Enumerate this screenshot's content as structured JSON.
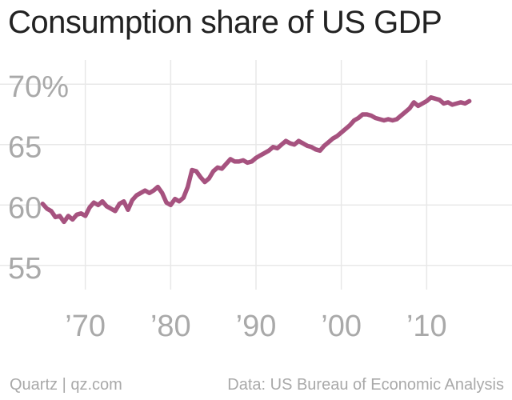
{
  "chart_data": {
    "type": "line",
    "title": "Consumption share of US GDP",
    "subtitle": "",
    "xlabel": "",
    "ylabel": "",
    "xlim": [
      1960,
      2020
    ],
    "ylim": [
      53,
      72
    ],
    "x_ticks": [
      {
        "value": 1970,
        "label": "’70"
      },
      {
        "value": 1980,
        "label": "’80"
      },
      {
        "value": 1990,
        "label": "’90"
      },
      {
        "value": 2000,
        "label": "’00"
      },
      {
        "value": 2010,
        "label": "’10"
      }
    ],
    "y_ticks": [
      {
        "value": 70,
        "label": "70%"
      },
      {
        "value": 65,
        "label": "65"
      },
      {
        "value": 60,
        "label": "60"
      },
      {
        "value": 55,
        "label": "55"
      }
    ],
    "grid": true,
    "series": [
      {
        "color": "#a6527f",
        "points": [
          [
            1965.0,
            60.1
          ],
          [
            1965.5,
            59.7
          ],
          [
            1966.0,
            59.5
          ],
          [
            1966.5,
            59.0
          ],
          [
            1967.0,
            59.1
          ],
          [
            1967.5,
            58.6
          ],
          [
            1968.0,
            59.1
          ],
          [
            1968.5,
            58.8
          ],
          [
            1969.0,
            59.2
          ],
          [
            1969.5,
            59.3
          ],
          [
            1970.0,
            59.1
          ],
          [
            1970.5,
            59.8
          ],
          [
            1971.0,
            60.2
          ],
          [
            1971.5,
            60.0
          ],
          [
            1972.0,
            60.3
          ],
          [
            1972.5,
            59.9
          ],
          [
            1973.0,
            59.7
          ],
          [
            1973.5,
            59.5
          ],
          [
            1974.0,
            60.1
          ],
          [
            1974.5,
            60.3
          ],
          [
            1975.0,
            59.6
          ],
          [
            1975.5,
            60.4
          ],
          [
            1976.0,
            60.8
          ],
          [
            1976.5,
            61.0
          ],
          [
            1977.0,
            61.2
          ],
          [
            1977.5,
            61.0
          ],
          [
            1978.0,
            61.2
          ],
          [
            1978.5,
            61.5
          ],
          [
            1979.0,
            61.0
          ],
          [
            1979.5,
            60.2
          ],
          [
            1980.0,
            60.0
          ],
          [
            1980.5,
            60.5
          ],
          [
            1981.0,
            60.3
          ],
          [
            1981.5,
            60.6
          ],
          [
            1982.0,
            61.5
          ],
          [
            1982.5,
            62.9
          ],
          [
            1983.0,
            62.8
          ],
          [
            1983.5,
            62.3
          ],
          [
            1984.0,
            61.9
          ],
          [
            1984.5,
            62.2
          ],
          [
            1985.0,
            62.8
          ],
          [
            1985.5,
            63.1
          ],
          [
            1986.0,
            63.0
          ],
          [
            1986.5,
            63.4
          ],
          [
            1987.0,
            63.8
          ],
          [
            1987.5,
            63.6
          ],
          [
            1988.0,
            63.6
          ],
          [
            1988.5,
            63.7
          ],
          [
            1989.0,
            63.5
          ],
          [
            1989.5,
            63.6
          ],
          [
            1990.0,
            63.9
          ],
          [
            1990.5,
            64.1
          ],
          [
            1991.0,
            64.3
          ],
          [
            1991.5,
            64.5
          ],
          [
            1992.0,
            64.8
          ],
          [
            1992.5,
            64.7
          ],
          [
            1993.0,
            65.0
          ],
          [
            1993.5,
            65.3
          ],
          [
            1994.0,
            65.1
          ],
          [
            1994.5,
            65.0
          ],
          [
            1995.0,
            65.3
          ],
          [
            1995.5,
            65.1
          ],
          [
            1996.0,
            64.9
          ],
          [
            1996.5,
            64.8
          ],
          [
            1997.0,
            64.6
          ],
          [
            1997.5,
            64.5
          ],
          [
            1998.0,
            64.9
          ],
          [
            1998.5,
            65.2
          ],
          [
            1999.0,
            65.5
          ],
          [
            1999.5,
            65.7
          ],
          [
            2000.0,
            66.0
          ],
          [
            2000.5,
            66.3
          ],
          [
            2001.0,
            66.6
          ],
          [
            2001.5,
            67.0
          ],
          [
            2002.0,
            67.2
          ],
          [
            2002.5,
            67.5
          ],
          [
            2003.0,
            67.5
          ],
          [
            2003.5,
            67.4
          ],
          [
            2004.0,
            67.2
          ],
          [
            2004.5,
            67.1
          ],
          [
            2005.0,
            67.0
          ],
          [
            2005.5,
            67.1
          ],
          [
            2006.0,
            67.0
          ],
          [
            2006.5,
            67.1
          ],
          [
            2007.0,
            67.4
          ],
          [
            2007.5,
            67.7
          ],
          [
            2008.0,
            68.0
          ],
          [
            2008.5,
            68.5
          ],
          [
            2009.0,
            68.2
          ],
          [
            2009.5,
            68.4
          ],
          [
            2010.0,
            68.6
          ],
          [
            2010.5,
            68.9
          ],
          [
            2011.0,
            68.8
          ],
          [
            2011.5,
            68.7
          ],
          [
            2012.0,
            68.4
          ],
          [
            2012.5,
            68.5
          ],
          [
            2013.0,
            68.3
          ],
          [
            2013.5,
            68.4
          ],
          [
            2014.0,
            68.5
          ],
          [
            2014.5,
            68.4
          ],
          [
            2015.0,
            68.6
          ]
        ]
      }
    ]
  },
  "footer": {
    "source": "Quartz | qz.com",
    "data_credit": "Data: US Bureau of Economic Analysis"
  }
}
